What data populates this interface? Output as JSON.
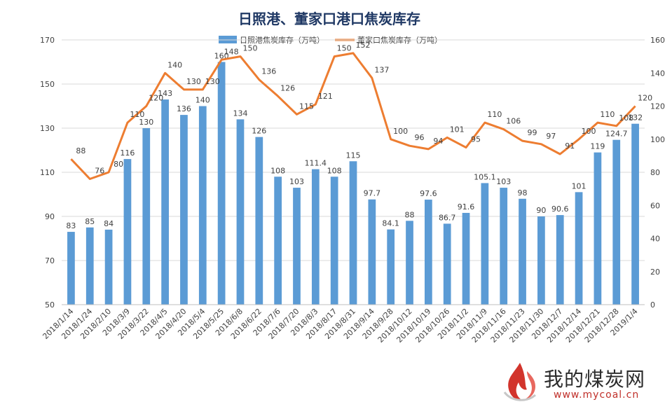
{
  "chart_data": {
    "type": "bar+line",
    "title": "日照港、董家口港口焦炭库存",
    "categories": [
      "2018/1/14",
      "2018/1/24",
      "2018/2/10",
      "2018/3/9",
      "2018/3/22",
      "2018/4/5",
      "2018/4/20",
      "2018/5/4",
      "2018/5/25",
      "2018/6/8",
      "2018/6/22",
      "2018/7/6",
      "2018/7/20",
      "2018/8/3",
      "2018/8/17",
      "2018/8/31",
      "2018/9/14",
      "2018/9/28",
      "2018/10/12",
      "2018/10/19",
      "2018/10/26",
      "2018/11/2",
      "2018/11/9",
      "2018/11/16",
      "2018/11/23",
      "2018/11/30",
      "2018/12/7",
      "2018/12/14",
      "2018/12/21",
      "2018/12/28",
      "2019/1/4"
    ],
    "series": [
      {
        "name": "日照港焦炭库存（万吨）",
        "type": "bar",
        "axis": "left",
        "color": "#5b9bd5",
        "values": [
          83,
          85,
          84,
          116,
          130,
          143,
          136,
          140,
          160,
          134,
          126,
          108,
          103,
          111.4,
          108,
          115,
          97.7,
          84.1,
          88,
          97.6,
          86.7,
          91.6,
          105.1,
          103,
          98,
          90,
          90.6,
          101,
          119,
          124.7,
          132
        ],
        "labels": [
          "83",
          "85",
          "84",
          "116",
          "130",
          "143",
          "136",
          "140",
          "160",
          "134",
          "126",
          "108",
          "103",
          "111.4",
          "108",
          "115",
          "97.7",
          "84.1",
          "88",
          "97.6",
          "86.7",
          "91.6",
          "105.1",
          "103",
          "98",
          "90",
          "90.6",
          "101",
          "119",
          "124.7",
          "132"
        ]
      },
      {
        "name": "董家口焦炭库存（万吨）",
        "type": "line",
        "axis": "right",
        "color": "#ed7d31",
        "values": [
          88,
          76,
          80,
          110,
          120,
          140,
          130,
          130,
          148,
          150,
          136,
          126,
          115,
          121,
          150,
          152,
          137,
          100,
          96,
          94,
          101,
          95,
          110,
          106,
          99,
          97,
          91,
          100,
          110,
          108,
          120
        ],
        "labels": [
          "88",
          "76",
          "80",
          "110",
          "120",
          "140",
          "130",
          "130",
          "148",
          "150",
          "136",
          "126",
          "115",
          "121",
          "150",
          "152",
          "137",
          "100",
          "96",
          "94",
          "101",
          "95",
          "110",
          "106",
          "99",
          "97",
          "91",
          "100",
          "110",
          "108",
          "120"
        ]
      }
    ],
    "y_left": {
      "min": 50,
      "max": 170,
      "ticks": [
        "50",
        "70",
        "90",
        "110",
        "130",
        "150",
        "170"
      ]
    },
    "y_right": {
      "min": 0,
      "max": 160,
      "ticks": [
        "0",
        "20",
        "40",
        "60",
        "80",
        "100",
        "120",
        "140",
        "160"
      ]
    },
    "grid": true,
    "legend_position": "top"
  },
  "watermark": {
    "text": "我的煤炭网",
    "url": "www.mycoal.cn"
  }
}
